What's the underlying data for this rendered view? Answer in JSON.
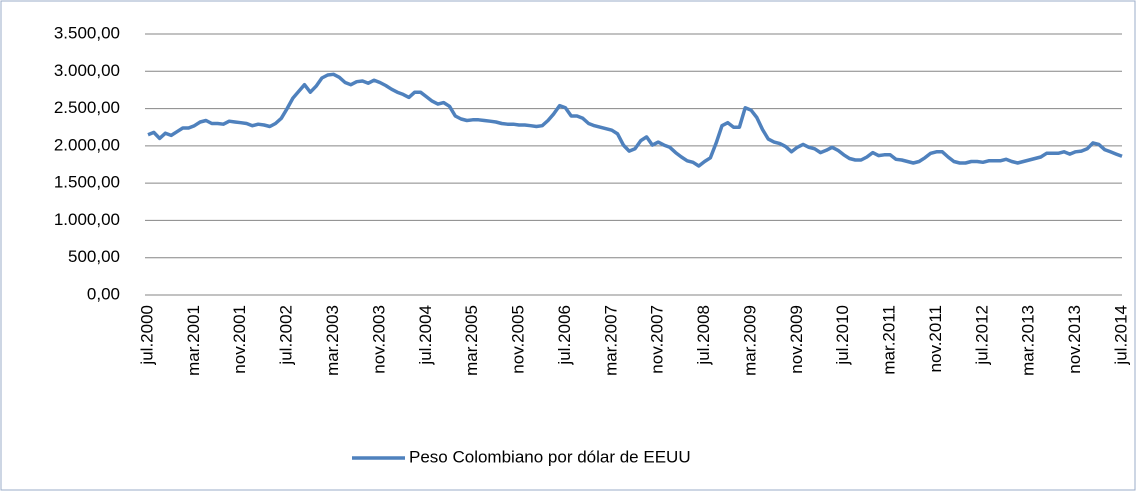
{
  "chart_data": {
    "type": "line",
    "categories": [
      "jul.2000",
      null,
      null,
      null,
      null,
      null,
      null,
      null,
      "mar.2001",
      null,
      null,
      null,
      null,
      null,
      null,
      null,
      "nov.2001",
      null,
      null,
      null,
      null,
      null,
      null,
      null,
      "jul.2002",
      null,
      null,
      null,
      null,
      null,
      null,
      null,
      "mar.2003",
      null,
      null,
      null,
      null,
      null,
      null,
      null,
      "nov.2003",
      null,
      null,
      null,
      null,
      null,
      null,
      null,
      "jul.2004",
      null,
      null,
      null,
      null,
      null,
      null,
      null,
      "mar.2005",
      null,
      null,
      null,
      null,
      null,
      null,
      null,
      "nov.2005",
      null,
      null,
      null,
      null,
      null,
      null,
      null,
      "jul.2006",
      null,
      null,
      null,
      null,
      null,
      null,
      null,
      "mar.2007",
      null,
      null,
      null,
      null,
      null,
      null,
      null,
      "nov.2007",
      null,
      null,
      null,
      null,
      null,
      null,
      null,
      "jul.2008",
      null,
      null,
      null,
      null,
      null,
      null,
      null,
      "mar.2009",
      null,
      null,
      null,
      null,
      null,
      null,
      null,
      "nov.2009",
      null,
      null,
      null,
      null,
      null,
      null,
      null,
      "jul.2010",
      null,
      null,
      null,
      null,
      null,
      null,
      null,
      "mar.2011",
      null,
      null,
      null,
      null,
      null,
      null,
      null,
      "nov.2011",
      null,
      null,
      null,
      null,
      null,
      null,
      null,
      "jul.2012",
      null,
      null,
      null,
      null,
      null,
      null,
      null,
      "mar.2013",
      null,
      null,
      null,
      null,
      null,
      null,
      null,
      "nov.2013",
      null,
      null,
      null,
      null,
      null,
      null,
      null,
      "jul.2014"
    ],
    "series": [
      {
        "name": "Peso Colombiano por dólar de EEUU",
        "color": "#4f81bd",
        "values": [
          2150,
          2180,
          2100,
          2170,
          2140,
          2190,
          2240,
          2240,
          2270,
          2320,
          2340,
          2300,
          2300,
          2290,
          2330,
          2320,
          2310,
          2300,
          2270,
          2290,
          2280,
          2260,
          2300,
          2370,
          2500,
          2640,
          2730,
          2820,
          2720,
          2800,
          2910,
          2950,
          2960,
          2920,
          2850,
          2820,
          2860,
          2870,
          2840,
          2880,
          2850,
          2810,
          2760,
          2720,
          2690,
          2650,
          2720,
          2720,
          2660,
          2600,
          2560,
          2580,
          2530,
          2400,
          2360,
          2340,
          2350,
          2350,
          2340,
          2330,
          2320,
          2300,
          2290,
          2290,
          2280,
          2280,
          2270,
          2260,
          2270,
          2340,
          2430,
          2540,
          2510,
          2400,
          2400,
          2370,
          2300,
          2270,
          2250,
          2230,
          2210,
          2160,
          2010,
          1930,
          1960,
          2070,
          2120,
          2010,
          2050,
          2010,
          1980,
          1910,
          1850,
          1800,
          1780,
          1730,
          1790,
          1840,
          2040,
          2270,
          2310,
          2250,
          2250,
          2510,
          2480,
          2380,
          2220,
          2090,
          2050,
          2030,
          1990,
          1920,
          1980,
          2020,
          1980,
          1960,
          1910,
          1940,
          1980,
          1940,
          1880,
          1830,
          1810,
          1810,
          1850,
          1910,
          1870,
          1880,
          1880,
          1820,
          1810,
          1790,
          1770,
          1790,
          1840,
          1900,
          1920,
          1920,
          1850,
          1790,
          1770,
          1770,
          1790,
          1790,
          1780,
          1800,
          1800,
          1800,
          1820,
          1790,
          1770,
          1790,
          1810,
          1830,
          1850,
          1900,
          1900,
          1900,
          1920,
          1890,
          1920,
          1930,
          1960,
          2040,
          2020,
          1950,
          1920,
          1890,
          1860
        ]
      }
    ],
    "ylim": [
      0,
      3500
    ],
    "yticks": [
      {
        "value": 0,
        "label": "0,00"
      },
      {
        "value": 500,
        "label": "500,00"
      },
      {
        "value": 1000,
        "label": "1.000,00"
      },
      {
        "value": 1500,
        "label": "1.500,00"
      },
      {
        "value": 2000,
        "label": "2.000,00"
      },
      {
        "value": 2500,
        "label": "2.500,00"
      },
      {
        "value": 3000,
        "label": "3.000,00"
      },
      {
        "value": 3500,
        "label": "3.500,00"
      }
    ],
    "grid": true,
    "legend": "bottom"
  }
}
